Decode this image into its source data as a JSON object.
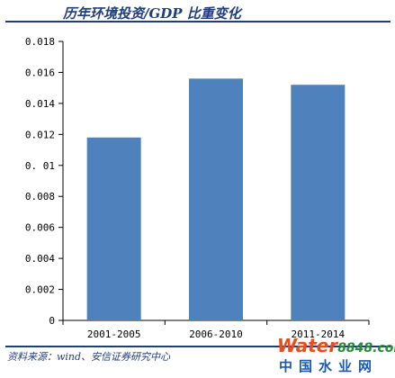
{
  "chart_data": {
    "type": "bar",
    "title": "历年环境投资/GDP 比重变化",
    "categories": [
      "2001-2005",
      "2006-2010",
      "2011-2014"
    ],
    "values": [
      0.0118,
      0.0156,
      0.0152
    ],
    "ylim": [
      0,
      0.018
    ],
    "yticks": [
      0,
      0.002,
      0.004,
      0.006,
      0.008,
      0.01,
      0.012,
      0.014,
      0.016,
      0.018
    ],
    "ytick_labels": [
      "0",
      "0.002",
      "0.004",
      "0.006",
      "0.008",
      "0. 01",
      "0.012",
      "0.014",
      "0.016",
      "0.018"
    ],
    "xlabel": "",
    "ylabel": "",
    "grid": false,
    "bar_color": "#4f81bd"
  },
  "source_text": "资料来源：wind、安信证券研究中心",
  "watermark": {
    "brand_water": "Water",
    "brand_number": "8848",
    "brand_suffix": ".com",
    "chinese_name": "中国水业网"
  },
  "colors": {
    "title": "#1f3d7a",
    "axis": "#000000",
    "watermark_orange": "#e84e1b",
    "watermark_green": "#2a8a3a",
    "watermark_blue": "#1b5aa8"
  }
}
